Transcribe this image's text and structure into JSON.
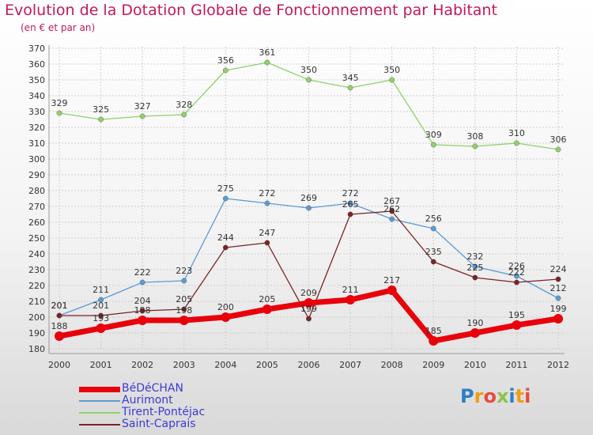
{
  "title": "Evolution de la Dotation Globale de Fonctionnement par Habitant",
  "subtitle": "(en € et par an)",
  "logo": "Proxiti",
  "chart_data": {
    "type": "line",
    "title": "Evolution de la Dotation Globale de Fonctionnement par Habitant",
    "subtitle": "(en € et par an)",
    "x": [
      "2000",
      "2001",
      "2002",
      "2003",
      "2004",
      "2005",
      "2006",
      "2007",
      "2008",
      "2009",
      "2010",
      "2011",
      "2012"
    ],
    "ylim": [
      180,
      370
    ],
    "yticks": [
      180,
      190,
      200,
      210,
      220,
      230,
      240,
      250,
      260,
      270,
      280,
      290,
      300,
      310,
      320,
      330,
      340,
      350,
      360,
      370
    ],
    "grid": true,
    "legend_position": "bottom-left",
    "series": [
      {
        "name": "BéDéCHAN",
        "color": "#e8000b",
        "values": [
          188,
          193,
          198,
          198,
          200,
          205,
          209,
          211,
          217,
          185,
          190,
          195,
          199
        ]
      },
      {
        "name": "Aurimont",
        "color": "#5b9bd5",
        "values": [
          201,
          211,
          222,
          223,
          275,
          272,
          269,
          272,
          262,
          256,
          232,
          226,
          212
        ]
      },
      {
        "name": "Tirent-Pontéjac",
        "color": "#8fd16a",
        "values": [
          329,
          325,
          327,
          328,
          356,
          361,
          350,
          345,
          350,
          309,
          308,
          310,
          306
        ]
      },
      {
        "name": "Saint-Caprais",
        "color": "#7b2222",
        "values": [
          201,
          201,
          204,
          205,
          244,
          247,
          199,
          265,
          267,
          235,
          225,
          222,
          224
        ]
      }
    ]
  }
}
